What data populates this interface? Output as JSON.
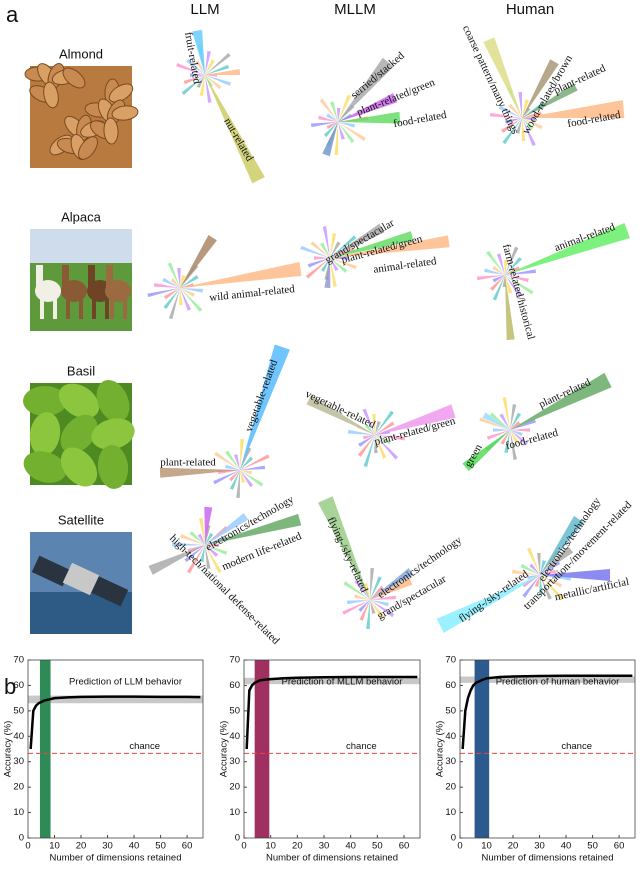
{
  "panel_labels": [
    "a",
    "b"
  ],
  "panel_a": {
    "columns": [
      "LLM",
      "MLLM",
      "Human"
    ],
    "rows": [
      {
        "name": "Almond",
        "labels": [
          [
            "fruit-related",
            "nut-related"
          ],
          [
            "serried/stacked",
            "plant-related/green",
            "food-related"
          ],
          [
            "coarse pattern/many things",
            "wood-related/brown",
            "plant-related",
            "food-related"
          ]
        ]
      },
      {
        "name": "Alpaca",
        "labels": [
          [
            "wild animal-related"
          ],
          [
            "grand/spectacular",
            "plant-related/green",
            "animal-related"
          ],
          [
            "animal-related",
            "farm-related/historical"
          ]
        ]
      },
      {
        "name": "Basil",
        "labels": [
          [
            "vegetable-related",
            "plant-related"
          ],
          [
            "vegetable-related",
            "plant-related/green"
          ],
          [
            "plant-related",
            "food-related",
            "green"
          ]
        ]
      },
      {
        "name": "Satellite",
        "labels": [
          [
            "electronics/technology",
            "modern life-related",
            "high-tech/national defense-related"
          ],
          [
            "flying-/sky-related",
            "electronics/technology",
            "grand/spectacular"
          ],
          [
            "electronics/technology",
            "transportation-/movement-related",
            "flying-/sky-related",
            "metallic/artificial"
          ]
        ]
      }
    ]
  },
  "chart_data": [
    {
      "type": "line",
      "title": "Prediction of LLM behavior",
      "xlabel": "Number of dimensions retained",
      "ylabel": "Accuracy (%)",
      "x": [
        1,
        2,
        3,
        4,
        5,
        6,
        8,
        10,
        15,
        20,
        30,
        40,
        50,
        60,
        65
      ],
      "series": [
        {
          "color": "#000000",
          "values": [
            35,
            50,
            52,
            53,
            53.5,
            54,
            54.5,
            55,
            55.3,
            55.5,
            55.6,
            55.6,
            55.5,
            55.5,
            55.4
          ]
        }
      ],
      "ceiling_band": [
        53,
        56
      ],
      "highlight": [
        4.5,
        8.5
      ],
      "highlight_color": "#2e8b57",
      "chance_level": 33.3,
      "chance_label": "chance",
      "xlim": [
        0,
        66
      ],
      "ylim": [
        0,
        70
      ],
      "xticks": [
        0,
        10,
        20,
        30,
        40,
        50,
        60
      ],
      "yticks": [
        0,
        10,
        20,
        30,
        40,
        50,
        60,
        70
      ]
    },
    {
      "type": "line",
      "title": "Prediction of MLLM behavior",
      "xlabel": "Number of dimensions retained",
      "ylabel": "Accuracy (%)",
      "x": [
        1,
        2,
        3,
        4,
        5,
        6,
        8,
        10,
        15,
        20,
        30,
        40,
        50,
        60,
        65
      ],
      "series": [
        {
          "color": "#000000",
          "values": [
            35,
            58,
            60,
            61,
            61.5,
            62,
            62.3,
            62.5,
            62.8,
            63,
            63.2,
            63.3,
            63.3,
            63.3,
            63.3
          ]
        }
      ],
      "ceiling_band": [
        60.5,
        63
      ],
      "highlight": [
        4,
        9.5
      ],
      "highlight_color": "#a03060",
      "chance_level": 33.3,
      "chance_label": "chance",
      "xlim": [
        0,
        66
      ],
      "ylim": [
        0,
        70
      ],
      "xticks": [
        0,
        10,
        20,
        30,
        40,
        50,
        60
      ],
      "yticks": [
        0,
        10,
        20,
        30,
        40,
        50,
        60,
        70
      ]
    },
    {
      "type": "line",
      "title": "Prediction of human behavior",
      "xlabel": "Number of dimensions retained",
      "ylabel": "Accuracy (%)",
      "x": [
        1,
        2,
        3,
        4,
        5,
        6,
        8,
        10,
        15,
        20,
        30,
        40,
        50,
        60,
        65
      ],
      "series": [
        {
          "color": "#000000",
          "values": [
            35,
            50,
            55,
            58,
            60,
            61,
            62,
            62.8,
            63.3,
            63.5,
            63.7,
            63.8,
            63.8,
            63.8,
            63.8
          ]
        }
      ],
      "ceiling_band": [
        61,
        63.5
      ],
      "highlight": [
        5.5,
        11
      ],
      "highlight_color": "#2c5a8e",
      "chance_level": 33.3,
      "chance_label": "chance",
      "xlim": [
        0,
        66
      ],
      "ylim": [
        0,
        70
      ],
      "xticks": [
        0,
        10,
        20,
        30,
        40,
        50,
        60
      ],
      "yticks": [
        0,
        10,
        20,
        30,
        40,
        50,
        60,
        70
      ]
    }
  ]
}
